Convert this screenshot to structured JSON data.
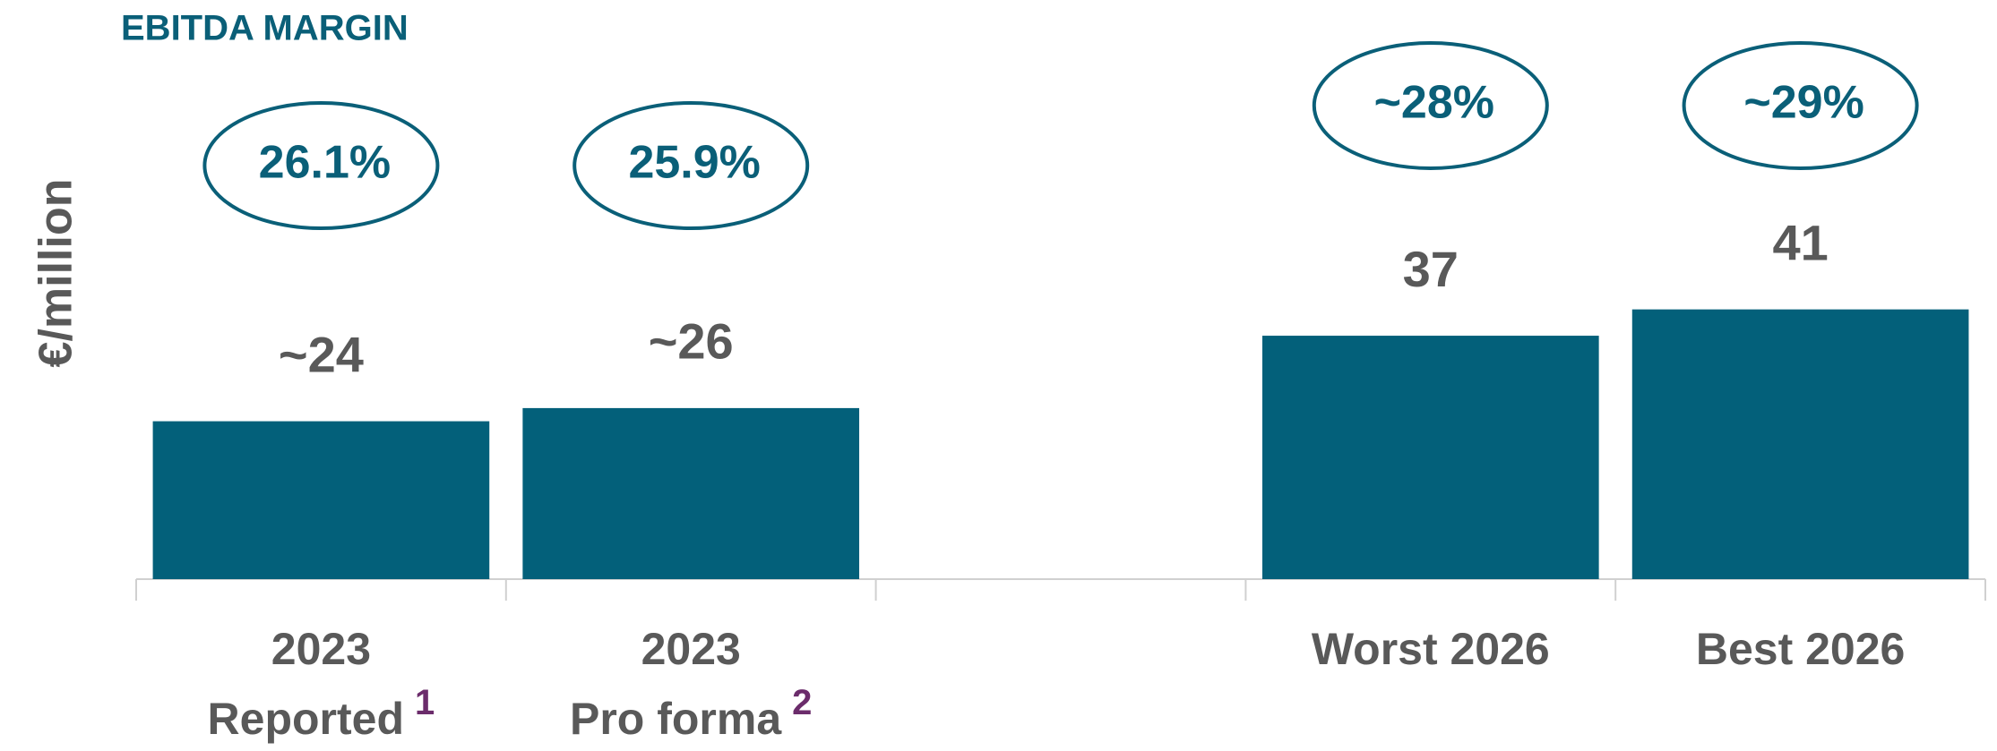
{
  "chart_data": {
    "type": "bar",
    "title": "EBITDA MARGIN",
    "ylabel": "€/million",
    "categories": [
      [
        "2023",
        "Reported"
      ],
      [
        "2023",
        "Pro forma"
      ],
      null,
      [
        "Worst 2026"
      ],
      [
        "Best 2026"
      ]
    ],
    "category_notes": [
      "1",
      "2",
      null,
      null,
      null
    ],
    "values": [
      24,
      26,
      null,
      37,
      41
    ],
    "value_labels": [
      "~24",
      "~26",
      null,
      "37",
      "41"
    ],
    "margin_labels": [
      "26.1%",
      "25.9%",
      null,
      "~28%",
      "~29%"
    ],
    "color": "#03607a",
    "ylim": [
      0,
      80
    ]
  }
}
